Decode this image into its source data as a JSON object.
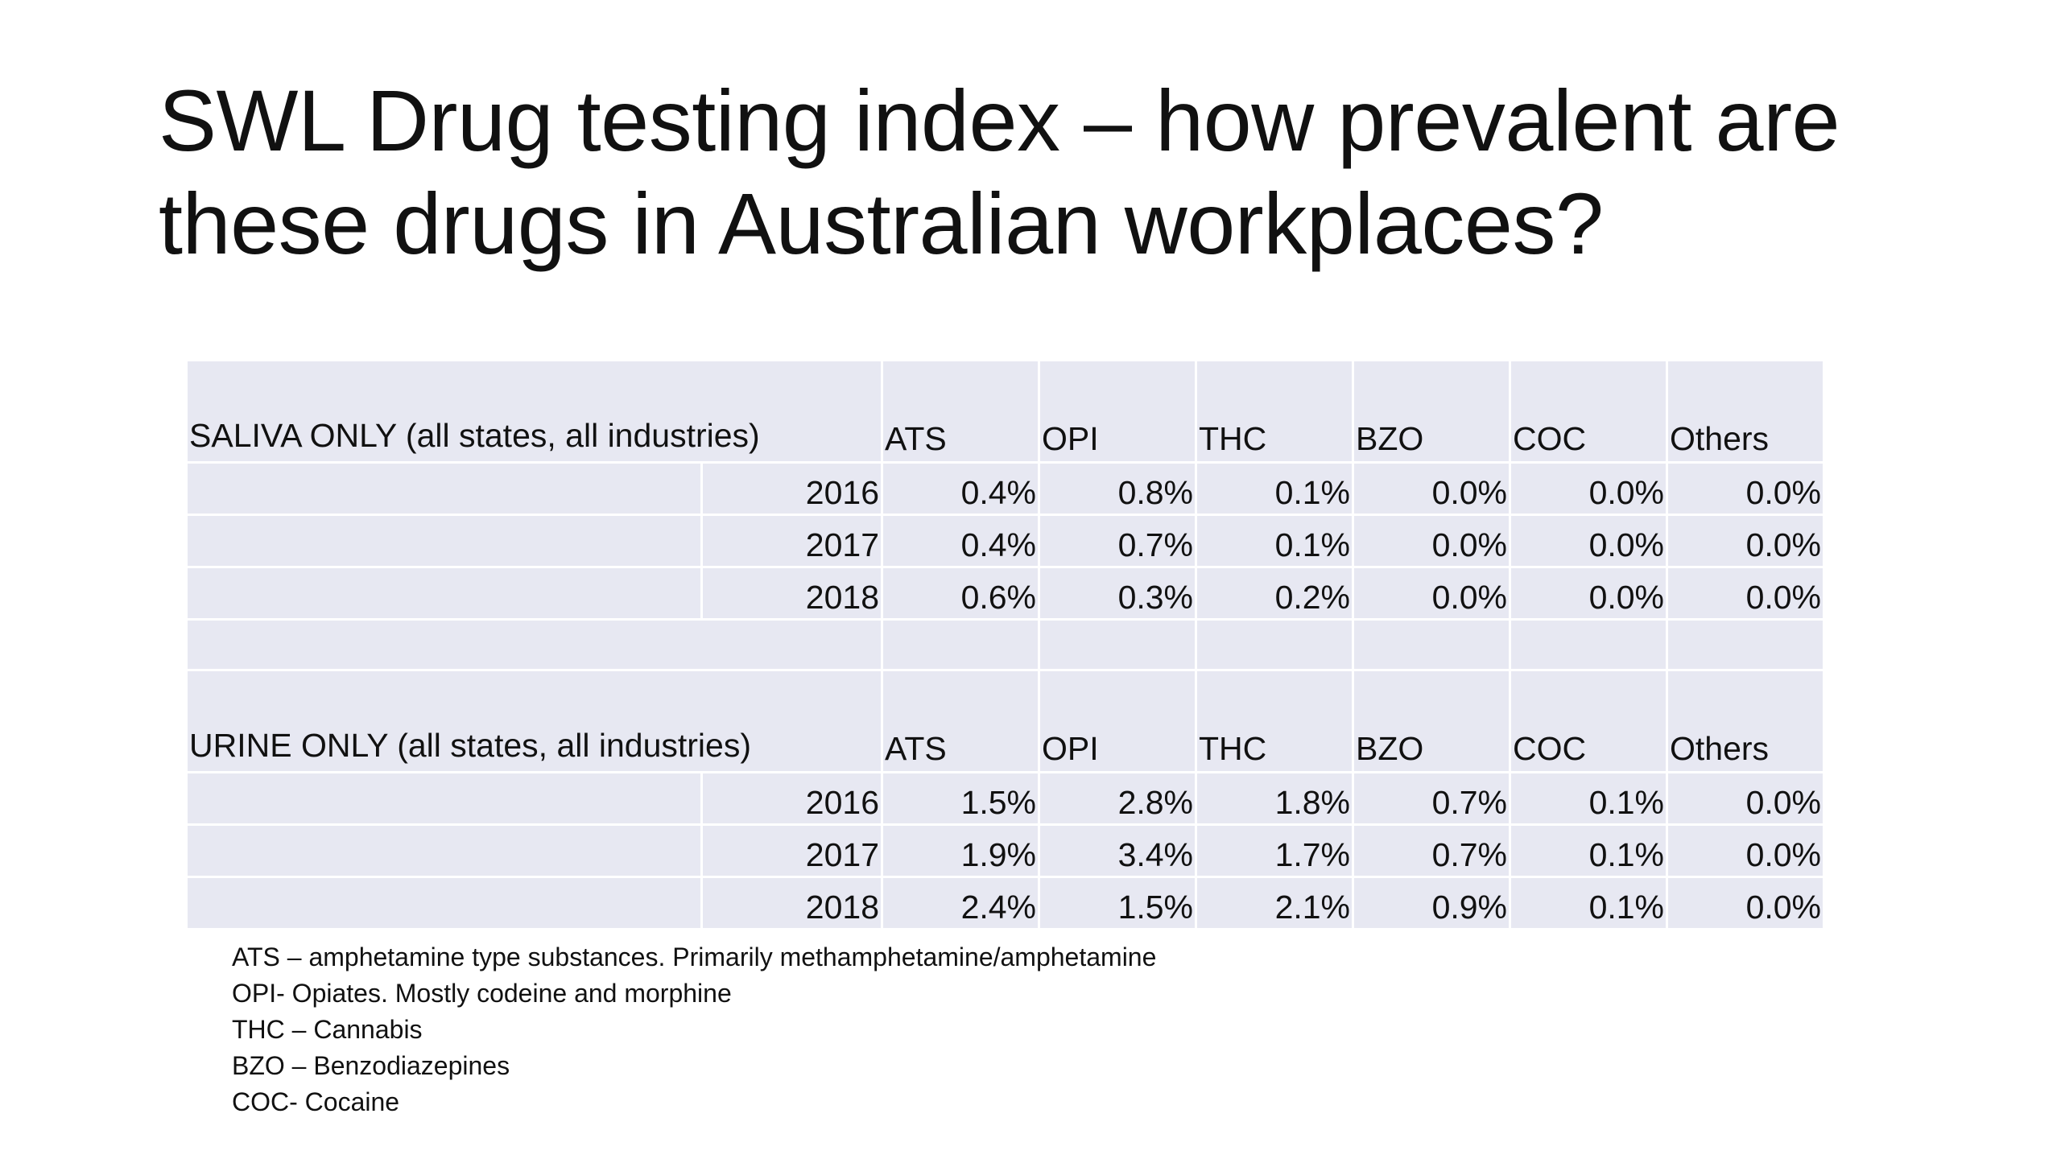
{
  "slide": {
    "title_lines": [
      "SWL Drug testing index – how prevalent are",
      "these drugs in Australian workplaces?"
    ]
  },
  "table": {
    "columns": [
      "ATS",
      "OPI",
      "THC",
      "BZO",
      "COC",
      "Others"
    ],
    "sections": [
      {
        "label": "SALIVA ONLY (all states, all industries)",
        "rows": [
          {
            "year": "2016",
            "values": [
              "0.4%",
              "0.8%",
              "0.1%",
              "0.0%",
              "0.0%",
              "0.0%"
            ]
          },
          {
            "year": "2017",
            "values": [
              "0.4%",
              "0.7%",
              "0.1%",
              "0.0%",
              "0.0%",
              "0.0%"
            ]
          },
          {
            "year": "2018",
            "values": [
              "0.6%",
              "0.3%",
              "0.2%",
              "0.0%",
              "0.0%",
              "0.0%"
            ]
          }
        ]
      },
      {
        "label": "URINE ONLY (all states, all industries)",
        "rows": [
          {
            "year": "2016",
            "values": [
              "1.5%",
              "2.8%",
              "1.8%",
              "0.7%",
              "0.1%",
              "0.0%"
            ]
          },
          {
            "year": "2017",
            "values": [
              "1.9%",
              "3.4%",
              "1.7%",
              "0.7%",
              "0.1%",
              "0.0%"
            ]
          },
          {
            "year": "2018",
            "values": [
              "2.4%",
              "1.5%",
              "2.1%",
              "0.9%",
              "0.1%",
              "0.0%"
            ]
          }
        ]
      }
    ]
  },
  "footnotes": [
    "ATS – amphetamine type substances. Primarily methamphetamine/amphetamine",
    "OPI- Opiates. Mostly codeine and morphine",
    "THC – Cannabis",
    "BZO – Benzodiazepines",
    "COC- Cocaine"
  ],
  "colors": {
    "table_fill": "#e7e8f2",
    "cell_border": "#ffffff",
    "text": "#111111"
  }
}
